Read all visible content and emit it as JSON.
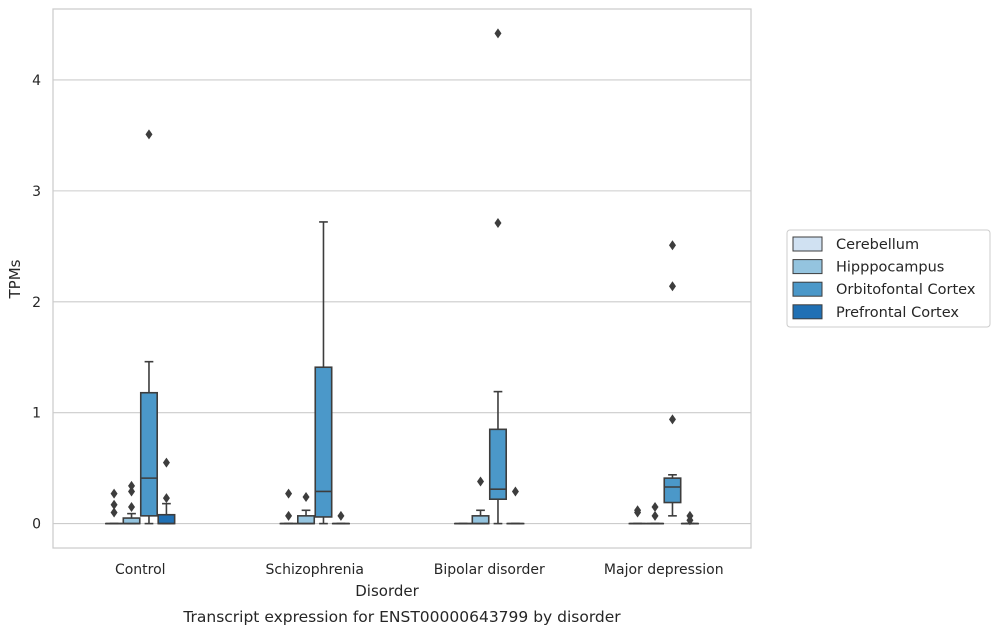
{
  "chart_data": {
    "type": "box",
    "caption": "Transcript expression for ENST00000643799 by disorder",
    "xlabel": "Disorder",
    "ylabel": "TPMs",
    "ylim": [
      -0.22,
      4.64
    ],
    "yticks": [
      0,
      1,
      2,
      3,
      4
    ],
    "grid": "horizontal",
    "legend_position": "right",
    "categories": [
      "Control",
      "Schizophrenia",
      "Bipolar disorder",
      "Major depression"
    ],
    "series": [
      {
        "name": "Cerebellum",
        "color": "#d0e1f2",
        "boxes": [
          {
            "q1": 0,
            "median": 0,
            "q3": 0,
            "whisker_low": 0,
            "whisker_high": 0,
            "outliers": [
              0.1,
              0.17,
              0.27
            ]
          },
          {
            "q1": 0,
            "median": 0,
            "q3": 0,
            "whisker_low": 0,
            "whisker_high": 0,
            "outliers": [
              0.07,
              0.27
            ]
          },
          {
            "q1": 0,
            "median": 0,
            "q3": 0,
            "whisker_low": 0,
            "whisker_high": 0,
            "outliers": []
          },
          {
            "q1": 0,
            "median": 0,
            "q3": 0,
            "whisker_low": 0,
            "whisker_high": 0,
            "outliers": [
              0.1,
              0.12
            ]
          }
        ]
      },
      {
        "name": "Hipppocampus",
        "color": "#94c4df",
        "boxes": [
          {
            "q1": 0,
            "median": 0,
            "q3": 0.05,
            "whisker_low": 0,
            "whisker_high": 0.09,
            "outliers": [
              0.15,
              0.29,
              0.34
            ]
          },
          {
            "q1": 0,
            "median": 0,
            "q3": 0.07,
            "whisker_low": 0,
            "whisker_high": 0.12,
            "outliers": [
              0.24
            ]
          },
          {
            "q1": 0,
            "median": 0,
            "q3": 0.07,
            "whisker_low": 0,
            "whisker_high": 0.12,
            "outliers": [
              0.38
            ]
          },
          {
            "q1": 0,
            "median": 0,
            "q3": 0,
            "whisker_low": 0,
            "whisker_high": 0,
            "outliers": [
              0.07,
              0.15
            ]
          }
        ]
      },
      {
        "name": "Orbitofontal Cortex",
        "color": "#4b98c9",
        "boxes": [
          {
            "q1": 0.07,
            "median": 0.41,
            "q3": 1.18,
            "whisker_low": 0,
            "whisker_high": 1.46,
            "outliers": [
              3.51
            ]
          },
          {
            "q1": 0.06,
            "median": 0.29,
            "q3": 1.41,
            "whisker_low": 0,
            "whisker_high": 2.72,
            "outliers": []
          },
          {
            "q1": 0.22,
            "median": 0.31,
            "q3": 0.85,
            "whisker_low": 0,
            "whisker_high": 1.19,
            "outliers": [
              2.71,
              4.42
            ]
          },
          {
            "q1": 0.19,
            "median": 0.33,
            "q3": 0.41,
            "whisker_low": 0.07,
            "whisker_high": 0.44,
            "outliers": [
              0.94,
              2.14,
              2.51
            ]
          }
        ]
      },
      {
        "name": "Prefrontal Cortex",
        "color": "#2070b4",
        "boxes": [
          {
            "q1": 0,
            "median": 0,
            "q3": 0.08,
            "whisker_low": 0,
            "whisker_high": 0.18,
            "outliers": [
              0.23,
              0.55
            ]
          },
          {
            "q1": 0,
            "median": 0,
            "q3": 0,
            "whisker_low": 0,
            "whisker_high": 0,
            "outliers": [
              0.07
            ]
          },
          {
            "q1": 0,
            "median": 0,
            "q3": 0,
            "whisker_low": 0,
            "whisker_high": 0,
            "outliers": [
              0.29
            ]
          },
          {
            "q1": 0,
            "median": 0,
            "q3": 0,
            "whisker_low": 0,
            "whisker_high": 0,
            "outliers": [
              0.03,
              0.07
            ]
          }
        ]
      }
    ]
  }
}
